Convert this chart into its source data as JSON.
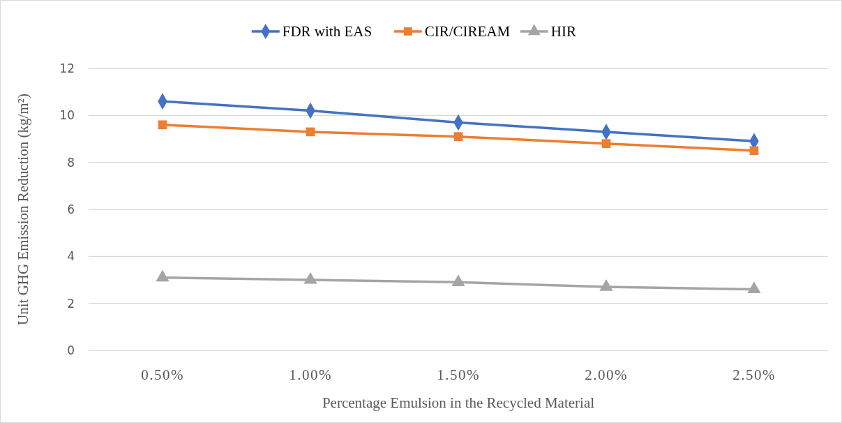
{
  "chart_data": {
    "type": "line",
    "xlabel": "Percentage Emulsion in the Recycled Material",
    "ylabel": "Unit GHG Emission Reduction (kg/m²)",
    "categories": [
      "0.50%",
      "1.00%",
      "1.50%",
      "2.00%",
      "2.50%"
    ],
    "series": [
      {
        "name": "FDR with EAS",
        "color": "#4472c4",
        "marker": "diamond",
        "values": [
          10.6,
          10.2,
          9.7,
          9.3,
          8.9
        ]
      },
      {
        "name": "CIR/CIREAM",
        "color": "#ed7d31",
        "marker": "square",
        "values": [
          9.6,
          9.3,
          9.1,
          8.8,
          8.5
        ]
      },
      {
        "name": "HIR",
        "color": "#a5a5a5",
        "marker": "triangle",
        "values": [
          3.1,
          3.0,
          2.9,
          2.7,
          2.6
        ]
      }
    ],
    "ylim": [
      0,
      12
    ],
    "yticks": [
      0,
      2,
      4,
      6,
      8,
      10,
      12
    ],
    "grid": "y",
    "legend": "top",
    "line_style": "solid"
  }
}
